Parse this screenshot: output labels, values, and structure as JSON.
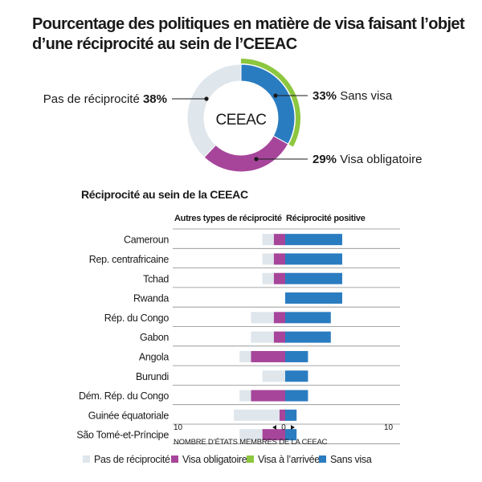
{
  "title": "Pourcentage des politiques en matière de visa faisant l’objet d’une réciprocité au sein de l’CEEAC",
  "colors": {
    "no_reciprocity": "#dfe6ec",
    "visa_required": "#a6459a",
    "visa_on_arrival": "#8dc63f",
    "visa_free": "#2a7cc0",
    "grid": "#8a8a8a"
  },
  "donut": {
    "center_label": "CEEAC",
    "slices": [
      {
        "key": "visa_free",
        "value": 33,
        "pct_label": "33%",
        "label": "Sans visa"
      },
      {
        "key": "visa_on_arrival_ring",
        "value": 33,
        "pct_label": "",
        "label": ""
      },
      {
        "key": "visa_required",
        "value": 29,
        "pct_label": "29%",
        "label": "Visa obligatoire"
      },
      {
        "key": "no_reciprocity",
        "value": 38,
        "pct_label": "38%",
        "label": "Pas de réciprocité"
      }
    ]
  },
  "chart_data": {
    "type": "bar",
    "title": "Réciprocité au sein de la CEEAC",
    "left_header": "Autres types de réciprocité",
    "right_header": "Réciprocité positive",
    "xlabel": "NOMBRE D’ÉTATS MEMBRES DE LA CEEAC",
    "xlim": [
      -10,
      10
    ],
    "tick_labels": {
      "left": "10",
      "zero": "0",
      "right": "10"
    },
    "categories": [
      "Cameroun",
      "Rep. centrafricaine",
      "Tchad",
      "Rwanda",
      "Rép. du Congo",
      "Gabon",
      "Angola",
      "Burundi",
      "Dém. Rép. du Congo",
      "Guinée équatoriale",
      "São Tomé-et-Príncipe"
    ],
    "series": [
      {
        "name": "Pas de réciprocité",
        "key": "no_reciprocity",
        "side": "left",
        "values": [
          1,
          1,
          1,
          0,
          2,
          2,
          1,
          2,
          1,
          4,
          2
        ]
      },
      {
        "name": "Visa obligatoire",
        "key": "visa_required",
        "side": "left",
        "values": [
          1,
          1,
          1,
          0,
          1,
          1,
          3,
          0,
          3,
          0.5,
          2
        ]
      },
      {
        "name": "Visa à l’arrivée",
        "key": "visa_on_arrival",
        "side": "right",
        "values": [
          0,
          0,
          0,
          0,
          0,
          0,
          0,
          0,
          0,
          0,
          0
        ]
      },
      {
        "name": "Sans visa",
        "key": "visa_free",
        "side": "right",
        "values": [
          5,
          5,
          5,
          5,
          4,
          4,
          2,
          2,
          2,
          1,
          1
        ]
      }
    ],
    "legend": [
      {
        "key": "no_reciprocity",
        "label": "Pas de réciprocité"
      },
      {
        "key": "visa_required",
        "label": "Visa obligatoire"
      },
      {
        "key": "visa_on_arrival",
        "label": "Visa à l’arrivée"
      },
      {
        "key": "visa_free",
        "label": "Sans visa"
      }
    ]
  }
}
